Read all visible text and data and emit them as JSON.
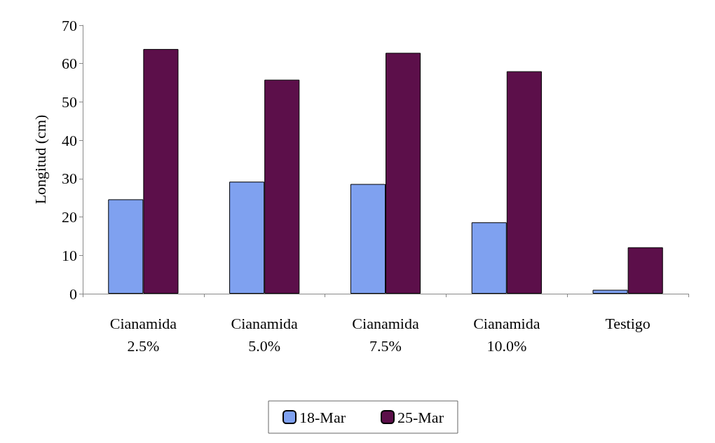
{
  "chart_data": {
    "type": "bar",
    "ylabel": "Longitud (cm)",
    "categories": [
      "Cianamida\n2.5%",
      "Cianamida\n5.0%",
      "Cianamida\n7.5%",
      "Cianamida\n10.0%",
      "Testigo"
    ],
    "series": [
      {
        "name": "18-Mar",
        "color": "#7fa1f0",
        "values": [
          24.6,
          29.2,
          28.6,
          18.6,
          1.0
        ]
      },
      {
        "name": "25-Mar",
        "color": "#5c0f4a",
        "values": [
          63.8,
          55.8,
          62.8,
          58.0,
          12.1
        ]
      }
    ],
    "ylim": [
      0,
      70
    ],
    "yticks": [
      0,
      10,
      20,
      30,
      40,
      50,
      60,
      70
    ],
    "grid": false,
    "legend": "bottom"
  }
}
